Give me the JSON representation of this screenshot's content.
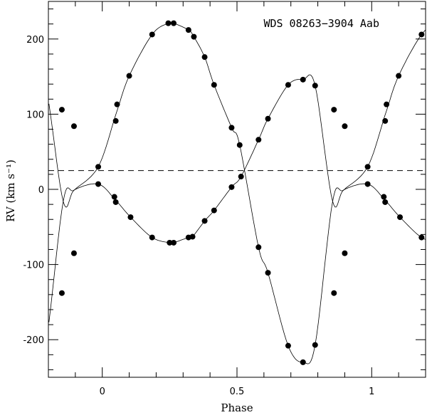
{
  "chart_data": {
    "type": "scatter",
    "title": "WDS 08263−3904 Aab",
    "xlabel": "Phase",
    "ylabel": "RV (km s⁻¹)",
    "xlim": [
      -0.2,
      1.2
    ],
    "ylim": [
      -250,
      250
    ],
    "x_ticks": [
      0,
      0.5,
      1
    ],
    "x_tick_labels": [
      "0",
      "0.5",
      "1"
    ],
    "y_ticks": [
      -200,
      -100,
      0,
      100,
      200
    ],
    "y_tick_labels": [
      "-200",
      "-100",
      "0",
      "100",
      "200"
    ],
    "systemic_velocity": 25,
    "grid": false,
    "series": [
      {
        "marker": "filled-circle",
        "points": [
          [
            -0.15,
            106
          ],
          [
            -0.105,
            84
          ],
          [
            -0.015,
            30
          ],
          [
            0.05,
            91
          ],
          [
            0.055,
            113
          ],
          [
            0.1,
            151
          ],
          [
            0.185,
            206
          ],
          [
            0.245,
            221
          ],
          [
            0.265,
            221
          ],
          [
            0.32,
            212
          ],
          [
            0.34,
            203
          ],
          [
            0.38,
            176
          ],
          [
            0.415,
            139
          ],
          [
            0.48,
            82
          ],
          [
            0.51,
            59
          ],
          [
            0.58,
            -77
          ],
          [
            0.615,
            -111
          ],
          [
            0.69,
            -208
          ],
          [
            0.745,
            -230
          ],
          [
            0.79,
            -207
          ],
          [
            0.86,
            -138
          ],
          [
            0.9,
            -85
          ],
          [
            0.985,
            30
          ],
          [
            1.05,
            91
          ],
          [
            1.055,
            113
          ],
          [
            1.1,
            151
          ],
          [
            1.185,
            206
          ]
        ]
      },
      {
        "marker": "filled-circle",
        "points": [
          [
            -0.15,
            -138
          ],
          [
            -0.105,
            -85
          ],
          [
            -0.015,
            7
          ],
          [
            0.045,
            -10
          ],
          [
            0.05,
            -17
          ],
          [
            0.105,
            -37
          ],
          [
            0.185,
            -64
          ],
          [
            0.25,
            -71
          ],
          [
            0.265,
            -71
          ],
          [
            0.32,
            -64
          ],
          [
            0.335,
            -63
          ],
          [
            0.38,
            -42
          ],
          [
            0.415,
            -28
          ],
          [
            0.48,
            3
          ],
          [
            0.515,
            17
          ],
          [
            0.58,
            66
          ],
          [
            0.615,
            94
          ],
          [
            0.69,
            139
          ],
          [
            0.745,
            146
          ],
          [
            0.79,
            138
          ],
          [
            0.86,
            106
          ],
          [
            0.9,
            84
          ],
          [
            0.985,
            7
          ],
          [
            1.045,
            -10
          ],
          [
            1.05,
            -17
          ],
          [
            1.105,
            -37
          ],
          [
            1.185,
            -64
          ]
        ]
      }
    ]
  }
}
